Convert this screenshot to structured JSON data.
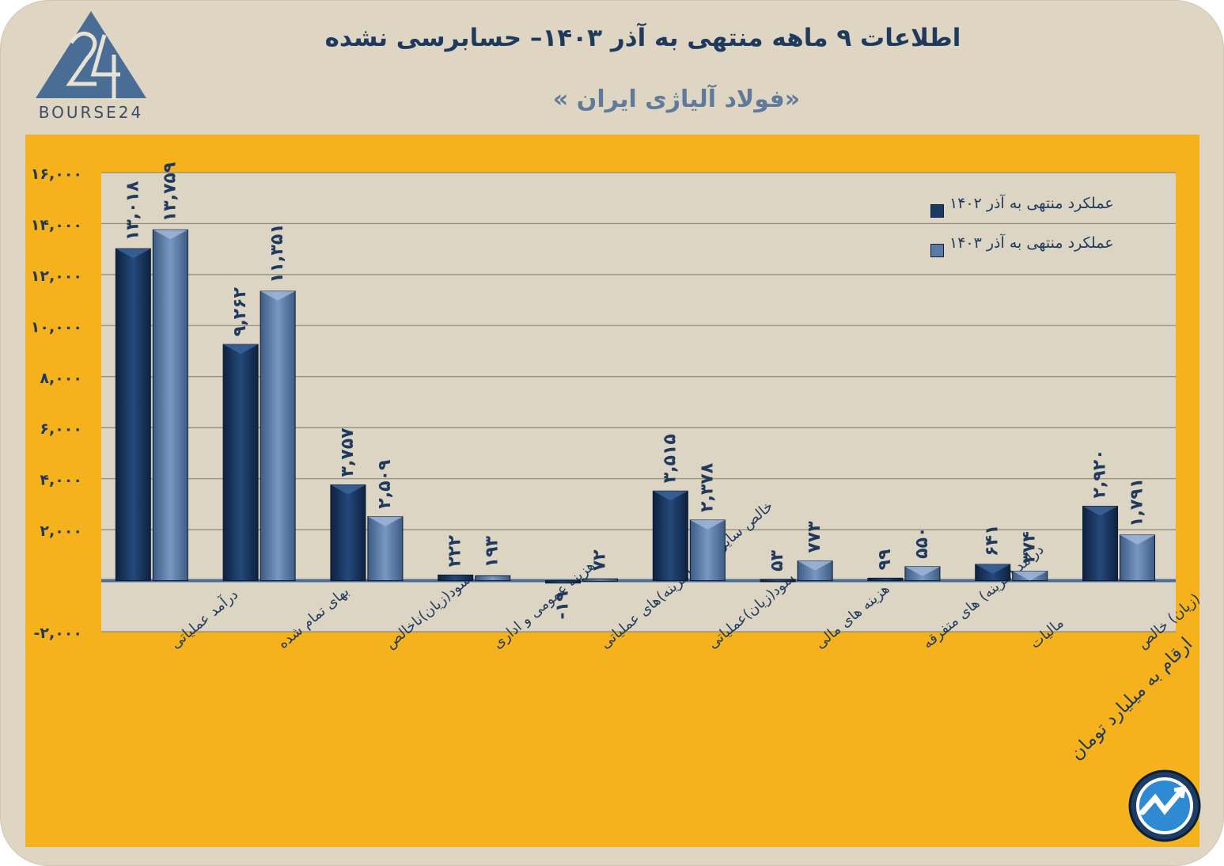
{
  "header": {
    "title": "اطلاعات ۹ ماهه منتهی به آذر  ۱۴۰۳– حسابرسی نشده",
    "subtitle": "«فولاد آلیاژی ایران »",
    "logo_text": "BOURSE24"
  },
  "note": "ارقام به میلیارد تومان",
  "colors": {
    "background": "#ded6c2",
    "panel": "#f5b21d",
    "plot_area": "#ddd5c3",
    "series_1402": "#1b3a63",
    "series_1403": "#5a7aa6",
    "text": "#1f3a5c"
  },
  "chart_data": {
    "type": "bar",
    "categories": [
      "درآمد عملیاتی",
      "بهای تمام شده",
      "سود(زیان)ناخالص",
      "هزینه عمومی و اداری",
      "خالص سایر درامد(هزینه)های عملیاتی",
      "سود(زیان)عملیاتی",
      "هزینه های مالی",
      "درآمد (هزینه) های متفرقه",
      "مالیات",
      "سود(زیان) خالص"
    ],
    "series": [
      {
        "name": "عملکرد منتهی به آذر ۱۴۰۲",
        "values": [
          13018,
          9262,
          3757,
          222,
          -19,
          3515,
          53,
          99,
          641,
          2920
        ],
        "labels": [
          "۱۳,۰۱۸",
          "۹,۲۶۲",
          "۳,۷۵۷",
          "۲۲۲",
          "-۱۹",
          "۳,۵۱۵",
          "۵۳",
          "۹۹",
          "۶۴۱",
          "۲,۹۲۰"
        ]
      },
      {
        "name": "عملکرد منتهی به آذر ۱۴۰۳",
        "values": [
          13759,
          11351,
          2509,
          193,
          72,
          2378,
          773,
          550,
          374,
          1791
        ],
        "labels": [
          "۱۳,۷۵۹",
          "۱۱,۳۵۱",
          "۲,۵۰۹",
          "۱۹۳",
          "۷۲",
          "۲,۳۷۸",
          "۷۷۳",
          "۵۵۰",
          "۳۷۴",
          "۱,۷۹۱"
        ]
      }
    ],
    "yticks": [
      -2000,
      0,
      2000,
      4000,
      6000,
      8000,
      10000,
      12000,
      14000,
      16000
    ],
    "ytick_labels": [
      "-۲,۰۰۰",
      "",
      "۲,۰۰۰",
      "۴,۰۰۰",
      "۶,۰۰۰",
      "۸,۰۰۰",
      "۱۰,۰۰۰",
      "۱۲,۰۰۰",
      "۱۴,۰۰۰",
      "۱۶,۰۰۰"
    ],
    "ylim": [
      -2000,
      16000
    ],
    "grid": true,
    "legend_position": "top-right"
  }
}
